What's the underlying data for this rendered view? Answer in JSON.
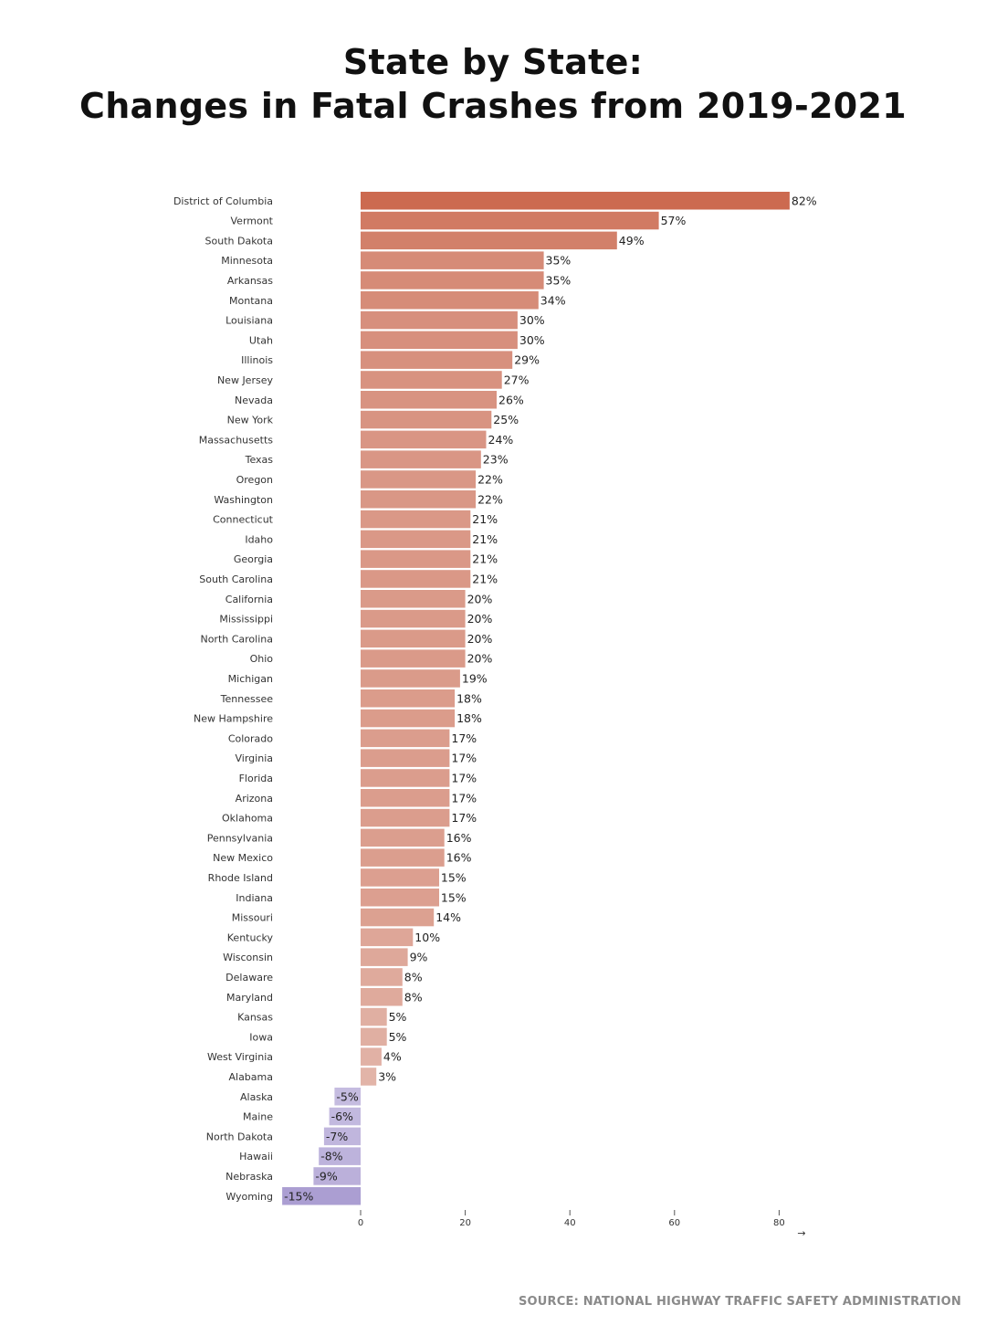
{
  "title": {
    "line1": "State by State:",
    "line2": "Changes in Fatal Crashes from 2019-2021"
  },
  "source": "SOURCE: NATIONAL HIGHWAY TRAFFIC SAFETY ADMINISTRATION",
  "colors": {
    "positive_dark": "#cc6a50",
    "positive_light": "#e6c2b9",
    "negative_light": "#c5bce0",
    "negative_dark": "#ab9ed2"
  },
  "chart_data": {
    "type": "bar",
    "orientation": "horizontal",
    "unit": "%",
    "xlim": [
      -15,
      82
    ],
    "x_ticks": [
      0,
      20,
      40,
      60,
      80
    ],
    "axis_arrow": "→",
    "categories": [
      "District of Columbia",
      "Vermont",
      "South Dakota",
      "Minnesota",
      "Arkansas",
      "Montana",
      "Louisiana",
      "Utah",
      "Illinois",
      "New Jersey",
      "Nevada",
      "New York",
      "Massachusetts",
      "Texas",
      "Oregon",
      "Washington",
      "Connecticut",
      "Idaho",
      "Georgia",
      "South Carolina",
      "California",
      "Mississippi",
      "North Carolina",
      "Ohio",
      "Michigan",
      "Tennessee",
      "New Hampshire",
      "Colorado",
      "Virginia",
      "Florida",
      "Arizona",
      "Oklahoma",
      "Pennsylvania",
      "New Mexico",
      "Rhode Island",
      "Indiana",
      "Missouri",
      "Kentucky",
      "Wisconsin",
      "Delaware",
      "Maryland",
      "Kansas",
      "Iowa",
      "West Virginia",
      "Alabama",
      "Alaska",
      "Maine",
      "North Dakota",
      "Hawaii",
      "Nebraska",
      "Wyoming"
    ],
    "values": [
      82,
      57,
      49,
      35,
      35,
      34,
      30,
      30,
      29,
      27,
      26,
      25,
      24,
      23,
      22,
      22,
      21,
      21,
      21,
      21,
      20,
      20,
      20,
      20,
      19,
      18,
      18,
      17,
      17,
      17,
      17,
      17,
      16,
      16,
      15,
      15,
      14,
      10,
      9,
      8,
      8,
      5,
      5,
      4,
      3,
      -5,
      -6,
      -7,
      -8,
      -9,
      -15
    ],
    "labels": [
      "82%",
      "57%",
      "49%",
      "35%",
      "35%",
      "34%",
      "30%",
      "30%",
      "29%",
      "27%",
      "26%",
      "25%",
      "24%",
      "23%",
      "22%",
      "22%",
      "21%",
      "21%",
      "21%",
      "21%",
      "20%",
      "20%",
      "20%",
      "20%",
      "19%",
      "18%",
      "18%",
      "17%",
      "17%",
      "17%",
      "17%",
      "17%",
      "16%",
      "16%",
      "15%",
      "15%",
      "14%",
      "10%",
      "9%",
      "8%",
      "8%",
      "5%",
      "5%",
      "4%",
      "3%",
      "-5%",
      "-6%",
      "-7%",
      "-8%",
      "-9%",
      "-15%"
    ]
  }
}
